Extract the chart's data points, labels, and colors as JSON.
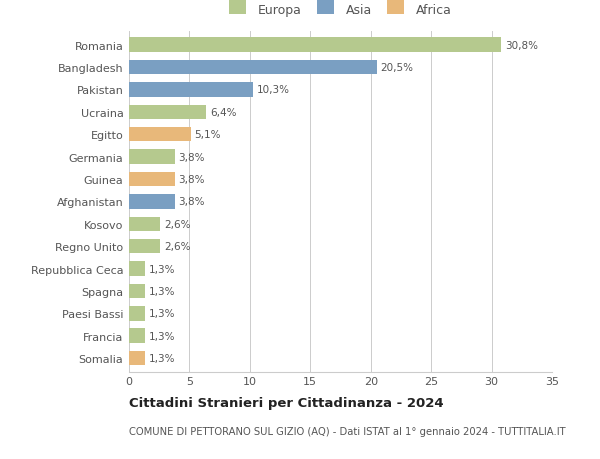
{
  "countries": [
    "Romania",
    "Bangladesh",
    "Pakistan",
    "Ucraina",
    "Egitto",
    "Germania",
    "Guinea",
    "Afghanistan",
    "Kosovo",
    "Regno Unito",
    "Repubblica Ceca",
    "Spagna",
    "Paesi Bassi",
    "Francia",
    "Somalia"
  ],
  "values": [
    30.8,
    20.5,
    10.3,
    6.4,
    5.1,
    3.8,
    3.8,
    3.8,
    2.6,
    2.6,
    1.3,
    1.3,
    1.3,
    1.3,
    1.3
  ],
  "labels": [
    "30,8%",
    "20,5%",
    "10,3%",
    "6,4%",
    "5,1%",
    "3,8%",
    "3,8%",
    "3,8%",
    "2,6%",
    "2,6%",
    "1,3%",
    "1,3%",
    "1,3%",
    "1,3%",
    "1,3%"
  ],
  "continents": [
    "Europa",
    "Asia",
    "Asia",
    "Europa",
    "Africa",
    "Europa",
    "Africa",
    "Asia",
    "Europa",
    "Europa",
    "Europa",
    "Europa",
    "Europa",
    "Europa",
    "Africa"
  ],
  "colors": {
    "Europa": "#b5c98e",
    "Asia": "#7a9fc2",
    "Africa": "#e8b87a"
  },
  "title": "Cittadini Stranieri per Cittadinanza - 2024",
  "subtitle": "COMUNE DI PETTORANO SUL GIZIO (AQ) - Dati ISTAT al 1° gennaio 2024 - TUTTITALIA.IT",
  "xlim": [
    0,
    35
  ],
  "xticks": [
    0,
    5,
    10,
    15,
    20,
    25,
    30,
    35
  ],
  "background_color": "#ffffff",
  "grid_color": "#cccccc",
  "bar_height": 0.65
}
